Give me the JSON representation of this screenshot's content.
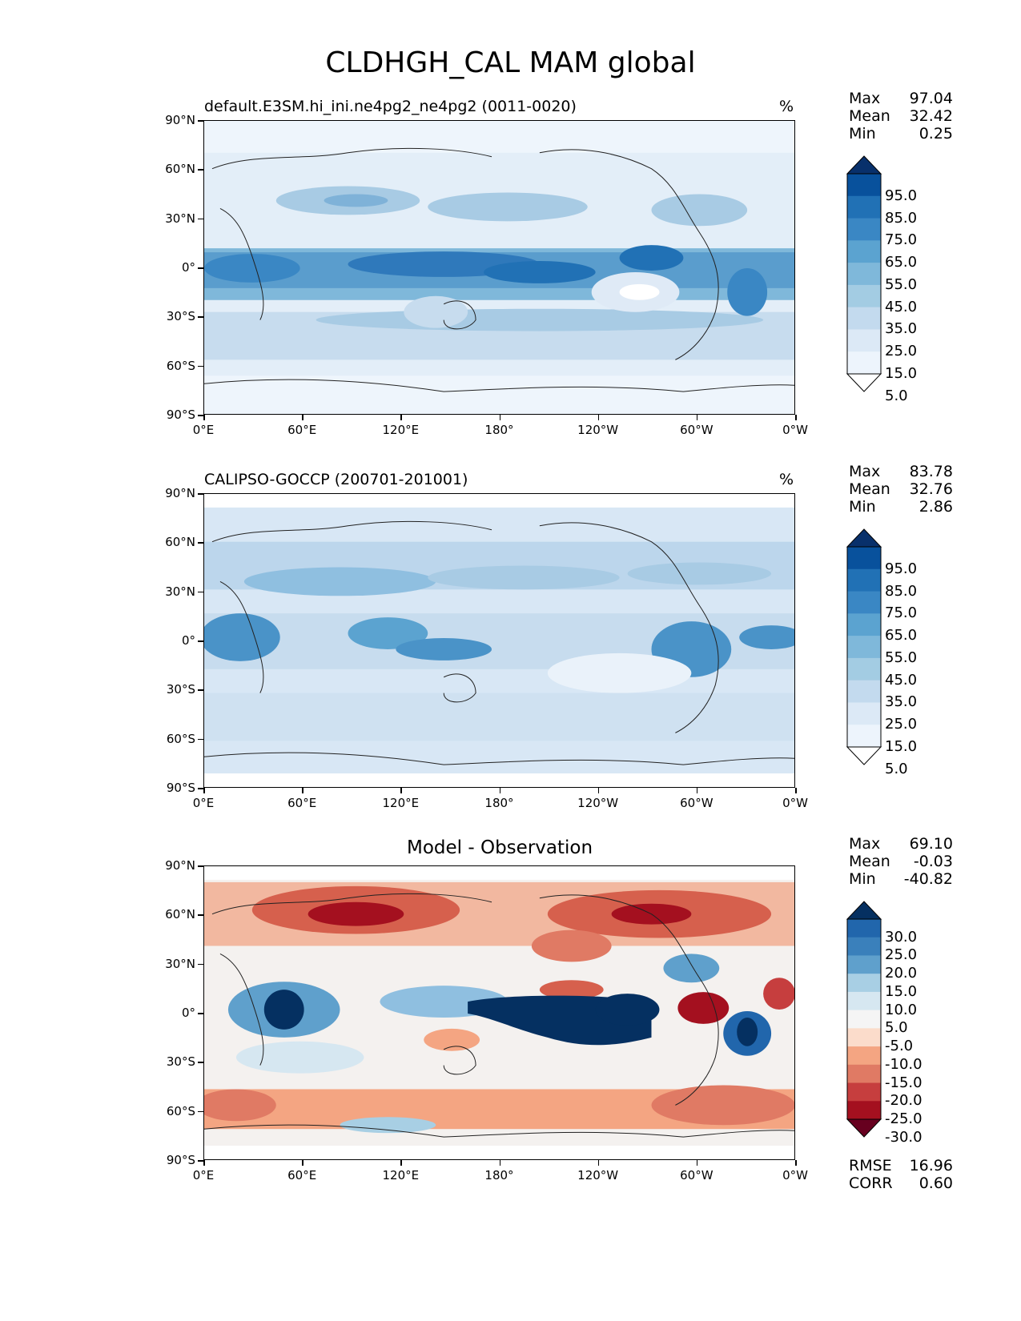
{
  "figure": {
    "title": "CLDHGH_CAL MAM global"
  },
  "axes": {
    "lat_ticks": [
      "90°N",
      "60°N",
      "30°N",
      "0°",
      "30°S",
      "60°S",
      "90°S"
    ],
    "lon_ticks": [
      "0°E",
      "60°E",
      "120°E",
      "180°",
      "120°W",
      "60°W",
      "0°W"
    ]
  },
  "panels": [
    {
      "title": "default.E3SM.hi_ini.ne4pg2_ne4pg2 (0011-0020)",
      "units": "%",
      "stats": [
        {
          "label": "Max",
          "value": "97.04"
        },
        {
          "label": "Mean",
          "value": "32.42"
        },
        {
          "label": "Min",
          "value": "0.25"
        }
      ],
      "colorbar": {
        "labels": [
          "95.0",
          "85.0",
          "75.0",
          "65.0",
          "55.0",
          "45.0",
          "35.0",
          "25.0",
          "15.0",
          "5.0"
        ],
        "colors": [
          "#08306b",
          "#08519c",
          "#2171b5",
          "#3a87c4",
          "#5ba3d0",
          "#7fb8da",
          "#a3cce3",
          "#c3daee",
          "#dce9f6",
          "#edf4fc",
          "#ffffff"
        ]
      }
    },
    {
      "title": "CALIPSO-GOCCP (200701-201001)",
      "units": "%",
      "stats": [
        {
          "label": "Max",
          "value": "83.78"
        },
        {
          "label": "Mean",
          "value": "32.76"
        },
        {
          "label": "Min",
          "value": "2.86"
        }
      ],
      "colorbar": {
        "labels": [
          "95.0",
          "85.0",
          "75.0",
          "65.0",
          "55.0",
          "45.0",
          "35.0",
          "25.0",
          "15.0",
          "5.0"
        ],
        "colors": [
          "#08306b",
          "#08519c",
          "#2171b5",
          "#3a87c4",
          "#5ba3d0",
          "#7fb8da",
          "#a3cce3",
          "#c3daee",
          "#dce9f6",
          "#edf4fc",
          "#ffffff"
        ]
      }
    },
    {
      "title": "Model - Observation",
      "units": "",
      "stats": [
        {
          "label": "Max",
          "value": "69.10"
        },
        {
          "label": "Mean",
          "value": "-0.03"
        },
        {
          "label": "Min",
          "value": "-40.82"
        }
      ],
      "extra_stats": [
        {
          "label": "RMSE",
          "value": "16.96"
        },
        {
          "label": "CORR",
          "value": "0.60"
        }
      ],
      "colorbar": {
        "labels": [
          "30.0",
          "25.0",
          "20.0",
          "15.0",
          "10.0",
          "5.0",
          "-5.0",
          "-10.0",
          "-15.0",
          "-20.0",
          "-25.0",
          "-30.0"
        ],
        "colors": [
          "#053061",
          "#2166ac",
          "#3a80bb",
          "#5fa0cc",
          "#a8cfe4",
          "#d6e7f1",
          "#f5f5f5",
          "#fbdccb",
          "#f4a582",
          "#e07a64",
          "#c63e3e",
          "#a4101f",
          "#67001f"
        ]
      }
    }
  ]
}
